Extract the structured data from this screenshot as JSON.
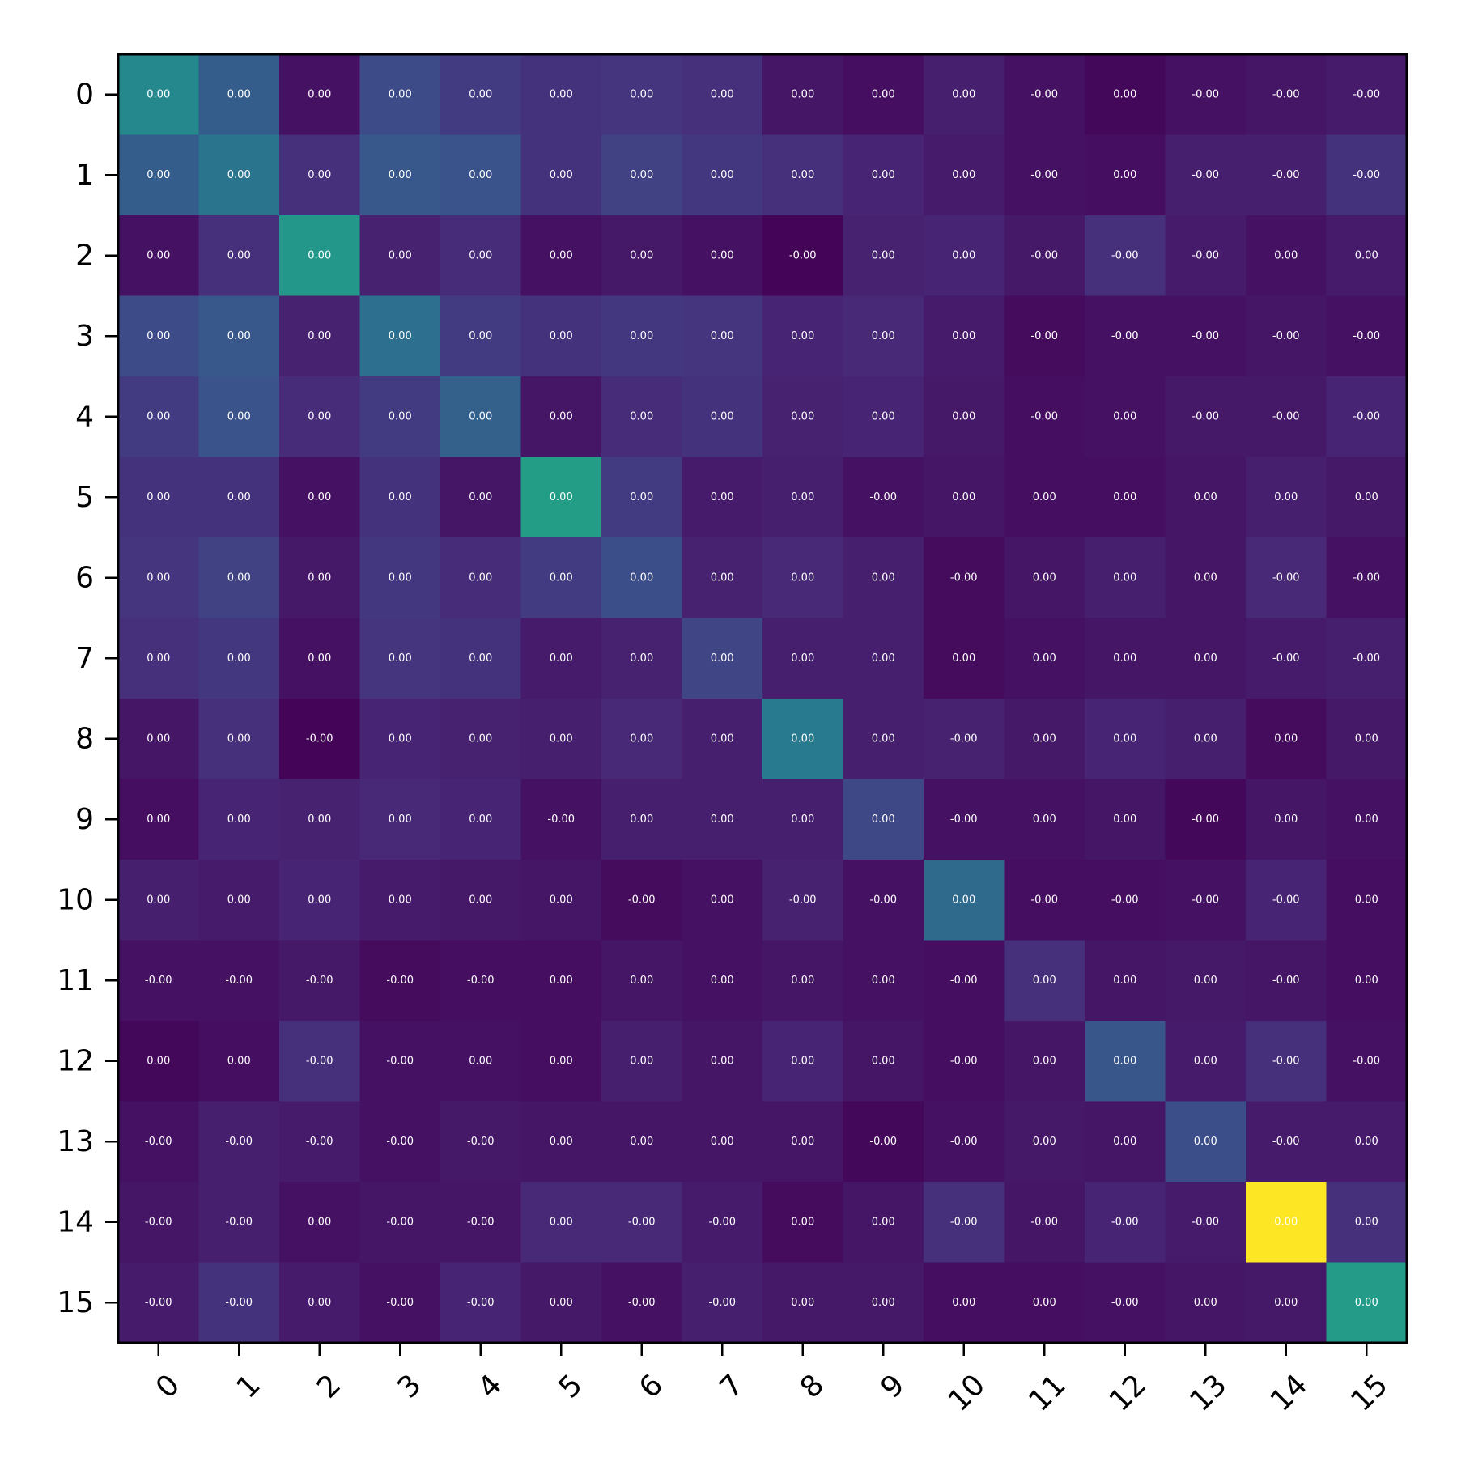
{
  "chart_data": {
    "type": "heatmap",
    "title": "",
    "xlabel": "",
    "ylabel": "",
    "colormap": "viridis",
    "x_categories": [
      "0",
      "1",
      "2",
      "3",
      "4",
      "5",
      "6",
      "7",
      "8",
      "9",
      "10",
      "11",
      "12",
      "13",
      "14",
      "15"
    ],
    "y_categories": [
      "0",
      "1",
      "2",
      "3",
      "4",
      "5",
      "6",
      "7",
      "8",
      "9",
      "10",
      "11",
      "12",
      "13",
      "14",
      "15"
    ],
    "value_range": [
      0.0,
      1.0
    ],
    "intensity": [
      [
        0.47,
        0.3,
        0.05,
        0.23,
        0.18,
        0.15,
        0.16,
        0.14,
        0.06,
        0.04,
        0.09,
        0.05,
        0.02,
        0.05,
        0.06,
        0.08
      ],
      [
        0.3,
        0.39,
        0.14,
        0.28,
        0.26,
        0.15,
        0.2,
        0.17,
        0.14,
        0.11,
        0.08,
        0.05,
        0.04,
        0.09,
        0.09,
        0.15
      ],
      [
        0.05,
        0.14,
        0.53,
        0.1,
        0.13,
        0.05,
        0.07,
        0.05,
        0.01,
        0.1,
        0.11,
        0.07,
        0.14,
        0.08,
        0.05,
        0.08
      ],
      [
        0.23,
        0.28,
        0.1,
        0.37,
        0.18,
        0.15,
        0.17,
        0.16,
        0.11,
        0.12,
        0.08,
        0.03,
        0.05,
        0.05,
        0.06,
        0.05
      ],
      [
        0.18,
        0.26,
        0.13,
        0.18,
        0.31,
        0.06,
        0.13,
        0.15,
        0.1,
        0.11,
        0.07,
        0.04,
        0.05,
        0.07,
        0.07,
        0.11
      ],
      [
        0.15,
        0.15,
        0.05,
        0.15,
        0.06,
        0.56,
        0.18,
        0.08,
        0.09,
        0.05,
        0.06,
        0.04,
        0.04,
        0.06,
        0.09,
        0.07
      ],
      [
        0.16,
        0.2,
        0.07,
        0.17,
        0.13,
        0.18,
        0.24,
        0.1,
        0.12,
        0.09,
        0.03,
        0.06,
        0.09,
        0.06,
        0.12,
        0.05
      ],
      [
        0.14,
        0.17,
        0.05,
        0.16,
        0.15,
        0.08,
        0.1,
        0.21,
        0.09,
        0.09,
        0.03,
        0.05,
        0.06,
        0.06,
        0.08,
        0.09
      ],
      [
        0.06,
        0.14,
        0.01,
        0.11,
        0.1,
        0.09,
        0.12,
        0.09,
        0.42,
        0.09,
        0.1,
        0.07,
        0.11,
        0.09,
        0.03,
        0.07
      ],
      [
        0.04,
        0.11,
        0.1,
        0.12,
        0.11,
        0.05,
        0.09,
        0.09,
        0.09,
        0.22,
        0.05,
        0.05,
        0.06,
        0.02,
        0.06,
        0.05
      ],
      [
        0.09,
        0.08,
        0.11,
        0.08,
        0.07,
        0.06,
        0.03,
        0.05,
        0.1,
        0.05,
        0.35,
        0.04,
        0.04,
        0.05,
        0.11,
        0.04
      ],
      [
        0.05,
        0.05,
        0.07,
        0.03,
        0.04,
        0.04,
        0.06,
        0.05,
        0.06,
        0.05,
        0.04,
        0.14,
        0.06,
        0.07,
        0.06,
        0.04
      ],
      [
        0.02,
        0.04,
        0.14,
        0.05,
        0.05,
        0.04,
        0.09,
        0.06,
        0.11,
        0.06,
        0.04,
        0.06,
        0.27,
        0.08,
        0.14,
        0.05
      ],
      [
        0.05,
        0.09,
        0.08,
        0.05,
        0.07,
        0.06,
        0.06,
        0.06,
        0.06,
        0.02,
        0.05,
        0.07,
        0.06,
        0.24,
        0.08,
        0.08
      ],
      [
        0.06,
        0.09,
        0.05,
        0.06,
        0.06,
        0.12,
        0.12,
        0.08,
        0.03,
        0.06,
        0.14,
        0.06,
        0.11,
        0.08,
        1.0,
        0.14
      ],
      [
        0.08,
        0.15,
        0.08,
        0.05,
        0.11,
        0.07,
        0.05,
        0.09,
        0.07,
        0.07,
        0.04,
        0.04,
        0.05,
        0.06,
        0.07,
        0.55
      ]
    ],
    "cell_labels": [
      [
        "0.00",
        "0.00",
        "0.00",
        "0.00",
        "0.00",
        "0.00",
        "0.00",
        "0.00",
        "0.00",
        "0.00",
        "0.00",
        "-0.00",
        "0.00",
        "-0.00",
        "-0.00",
        "-0.00"
      ],
      [
        "0.00",
        "0.00",
        "0.00",
        "0.00",
        "0.00",
        "0.00",
        "0.00",
        "0.00",
        "0.00",
        "0.00",
        "0.00",
        "-0.00",
        "0.00",
        "-0.00",
        "-0.00",
        "-0.00"
      ],
      [
        "0.00",
        "0.00",
        "0.00",
        "0.00",
        "0.00",
        "0.00",
        "0.00",
        "0.00",
        "-0.00",
        "0.00",
        "0.00",
        "-0.00",
        "-0.00",
        "-0.00",
        "0.00",
        "0.00"
      ],
      [
        "0.00",
        "0.00",
        "0.00",
        "0.00",
        "0.00",
        "0.00",
        "0.00",
        "0.00",
        "0.00",
        "0.00",
        "0.00",
        "-0.00",
        "-0.00",
        "-0.00",
        "-0.00",
        "-0.00"
      ],
      [
        "0.00",
        "0.00",
        "0.00",
        "0.00",
        "0.00",
        "0.00",
        "0.00",
        "0.00",
        "0.00",
        "0.00",
        "0.00",
        "-0.00",
        "0.00",
        "-0.00",
        "-0.00",
        "-0.00"
      ],
      [
        "0.00",
        "0.00",
        "0.00",
        "0.00",
        "0.00",
        "0.00",
        "0.00",
        "0.00",
        "0.00",
        "-0.00",
        "0.00",
        "0.00",
        "0.00",
        "0.00",
        "0.00",
        "0.00"
      ],
      [
        "0.00",
        "0.00",
        "0.00",
        "0.00",
        "0.00",
        "0.00",
        "0.00",
        "0.00",
        "0.00",
        "0.00",
        "-0.00",
        "0.00",
        "0.00",
        "0.00",
        "-0.00",
        "-0.00"
      ],
      [
        "0.00",
        "0.00",
        "0.00",
        "0.00",
        "0.00",
        "0.00",
        "0.00",
        "0.00",
        "0.00",
        "0.00",
        "0.00",
        "0.00",
        "0.00",
        "0.00",
        "-0.00",
        "-0.00"
      ],
      [
        "0.00",
        "0.00",
        "-0.00",
        "0.00",
        "0.00",
        "0.00",
        "0.00",
        "0.00",
        "0.00",
        "0.00",
        "-0.00",
        "0.00",
        "0.00",
        "0.00",
        "0.00",
        "0.00"
      ],
      [
        "0.00",
        "0.00",
        "0.00",
        "0.00",
        "0.00",
        "-0.00",
        "0.00",
        "0.00",
        "0.00",
        "0.00",
        "-0.00",
        "0.00",
        "0.00",
        "-0.00",
        "0.00",
        "0.00"
      ],
      [
        "0.00",
        "0.00",
        "0.00",
        "0.00",
        "0.00",
        "0.00",
        "-0.00",
        "0.00",
        "-0.00",
        "-0.00",
        "0.00",
        "-0.00",
        "-0.00",
        "-0.00",
        "-0.00",
        "0.00"
      ],
      [
        "-0.00",
        "-0.00",
        "-0.00",
        "-0.00",
        "-0.00",
        "0.00",
        "0.00",
        "0.00",
        "0.00",
        "0.00",
        "-0.00",
        "0.00",
        "0.00",
        "0.00",
        "-0.00",
        "0.00"
      ],
      [
        "0.00",
        "0.00",
        "-0.00",
        "-0.00",
        "0.00",
        "0.00",
        "0.00",
        "0.00",
        "0.00",
        "0.00",
        "-0.00",
        "0.00",
        "0.00",
        "0.00",
        "-0.00",
        "-0.00"
      ],
      [
        "-0.00",
        "-0.00",
        "-0.00",
        "-0.00",
        "-0.00",
        "0.00",
        "0.00",
        "0.00",
        "0.00",
        "-0.00",
        "-0.00",
        "0.00",
        "0.00",
        "0.00",
        "-0.00",
        "0.00"
      ],
      [
        "-0.00",
        "-0.00",
        "0.00",
        "-0.00",
        "-0.00",
        "0.00",
        "-0.00",
        "-0.00",
        "0.00",
        "0.00",
        "-0.00",
        "-0.00",
        "-0.00",
        "-0.00",
        "0.00",
        "0.00"
      ],
      [
        "-0.00",
        "-0.00",
        "0.00",
        "-0.00",
        "-0.00",
        "0.00",
        "-0.00",
        "-0.00",
        "0.00",
        "0.00",
        "0.00",
        "0.00",
        "-0.00",
        "0.00",
        "0.00",
        "0.00"
      ]
    ],
    "grid": false,
    "legend": "none"
  }
}
